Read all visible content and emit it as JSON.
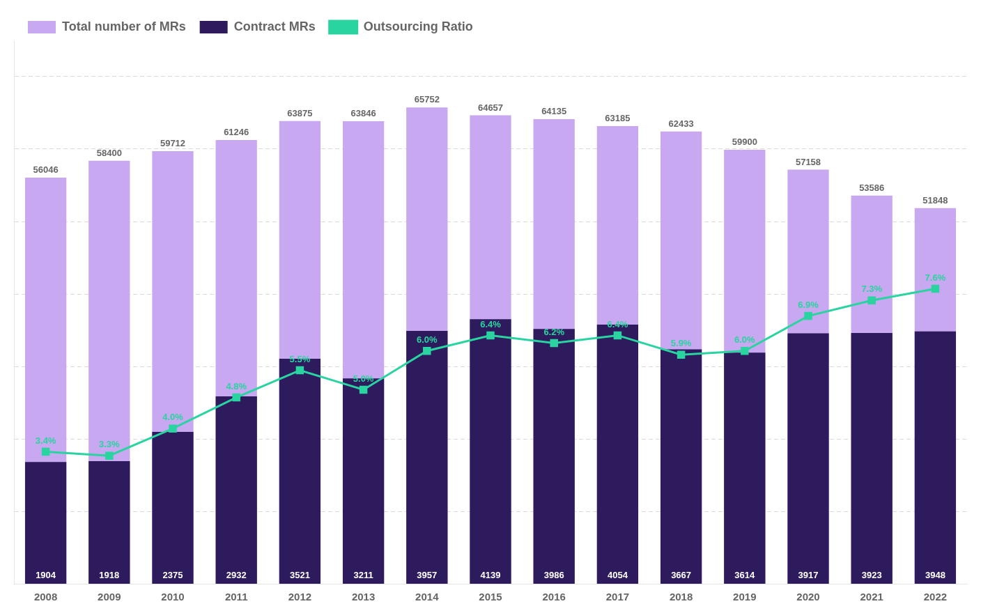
{
  "chart_data": {
    "type": "bar",
    "categories": [
      "2008",
      "2009",
      "2010",
      "2011",
      "2012",
      "2013",
      "2014",
      "2015",
      "2016",
      "2017",
      "2018",
      "2019",
      "2020",
      "2021",
      "2022"
    ],
    "series": [
      {
        "name": "Total number of MRs",
        "type": "bar",
        "color": "#c8a8f0",
        "axis": "y",
        "values": [
          56046,
          58400,
          59712,
          61246,
          63875,
          63846,
          65752,
          64657,
          64135,
          63185,
          62433,
          59900,
          57158,
          53586,
          51848
        ]
      },
      {
        "name": "Contract MRs",
        "type": "bar",
        "color": "#2d1b5e",
        "axis": "y2",
        "values": [
          1904,
          1918,
          2375,
          2932,
          3521,
          3211,
          3957,
          4139,
          3986,
          4054,
          3667,
          3614,
          3917,
          3923,
          3948
        ]
      },
      {
        "name": "Outsourcing Ratio",
        "type": "line",
        "color": "#2ad4a0",
        "axis": "y3",
        "marker": "square",
        "line_style": "solid",
        "values": [
          3.4,
          3.3,
          4.0,
          4.8,
          5.5,
          5.0,
          6.0,
          6.4,
          6.2,
          6.4,
          5.9,
          6.0,
          6.9,
          7.3,
          7.6
        ],
        "value_labels": [
          "3.4%",
          "3.3%",
          "4.0%",
          "4.8%",
          "5.5%",
          "5.0%",
          "6.0%",
          "6.4%",
          "6.2%",
          "6.4%",
          "5.9%",
          "6.0%",
          "6.9%",
          "7.3%",
          "7.6%"
        ]
      }
    ],
    "ylim": [
      0,
      75000
    ],
    "yticks": [
      10000,
      20000,
      30000,
      40000,
      50000,
      60000,
      70000
    ],
    "y2lim": [
      0,
      8500
    ],
    "y3lim": [
      0,
      14.0
    ],
    "grid": true,
    "legend": "upper left",
    "data_labels": true,
    "tick_labels": "x"
  }
}
